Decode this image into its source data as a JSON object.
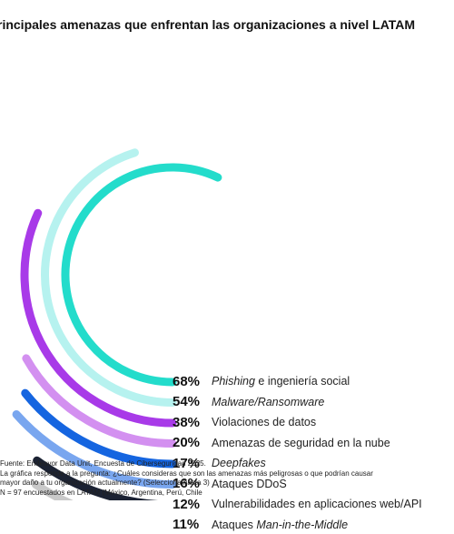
{
  "title": "rincipales amenazas que enfrentan las organizaciones a nivel LATAM",
  "chart_data": {
    "type": "radial-bar",
    "title": "rincipales amenazas que enfrentan las organizaciones a nivel LATAM",
    "unit": "%",
    "series": [
      {
        "name": "Phishing e ingeniería social",
        "value": 68,
        "pct_label": "68%",
        "color": "#23dccb",
        "label_parts": [
          {
            "text": "Phishing",
            "italic": true
          },
          {
            "text": " e ingeniería social",
            "italic": false
          }
        ]
      },
      {
        "name": "Malware/Ransomware",
        "value": 54,
        "pct_label": "54%",
        "color": "#b6f2ef",
        "label_parts": [
          {
            "text": "Malware/Ransomware",
            "italic": true
          }
        ]
      },
      {
        "name": "Violaciones de datos",
        "value": 38,
        "pct_label": "38%",
        "color": "#a83ae8",
        "label_parts": [
          {
            "text": "Violaciones de datos",
            "italic": false
          }
        ]
      },
      {
        "name": "Amenazas de seguridad en la nube",
        "value": 20,
        "pct_label": "20%",
        "color": "#d390f0",
        "label_parts": [
          {
            "text": "Amenazas de seguridad en la nube",
            "italic": false
          }
        ]
      },
      {
        "name": "Deepfakes",
        "value": 17,
        "pct_label": "17%",
        "color": "#1565e0",
        "label_parts": [
          {
            "text": "Deepfakes",
            "italic": true
          }
        ]
      },
      {
        "name": "Ataques DDoS",
        "value": 16,
        "pct_label": "16%",
        "color": "#79a6ef",
        "label_parts": [
          {
            "text": "Ataques DDoS",
            "italic": false
          }
        ]
      },
      {
        "name": "Vulnerabilidades en aplicaciones web/API",
        "value": 12,
        "pct_label": "12%",
        "color": "#1b2233",
        "label_parts": [
          {
            "text": "Vulnerabilidades en aplicaciones web/API",
            "italic": false
          }
        ]
      },
      {
        "name": "Ataques Man-in-the-Middle",
        "value": 11,
        "pct_label": "11%",
        "color": "#c9c9c9",
        "label_parts": [
          {
            "text": "Ataques ",
            "italic": false
          },
          {
            "text": "Man-in-the-Middle",
            "italic": true
          }
        ]
      }
    ]
  },
  "footnotes": [
    "Fuente: Endeavor Data Unit, Encuesta de Ciberseguridad 2025.",
    "La gráfica responde a la pregunta:  ¿Cuáles consideras que son las amenazas más peligrosas o que podrían causar",
    "mayor daño a tu organización actualmente? (Selecciona hasta 3)",
    "N = 97 encuestados en LATAM (México, Argentina, Perú, Chile"
  ]
}
